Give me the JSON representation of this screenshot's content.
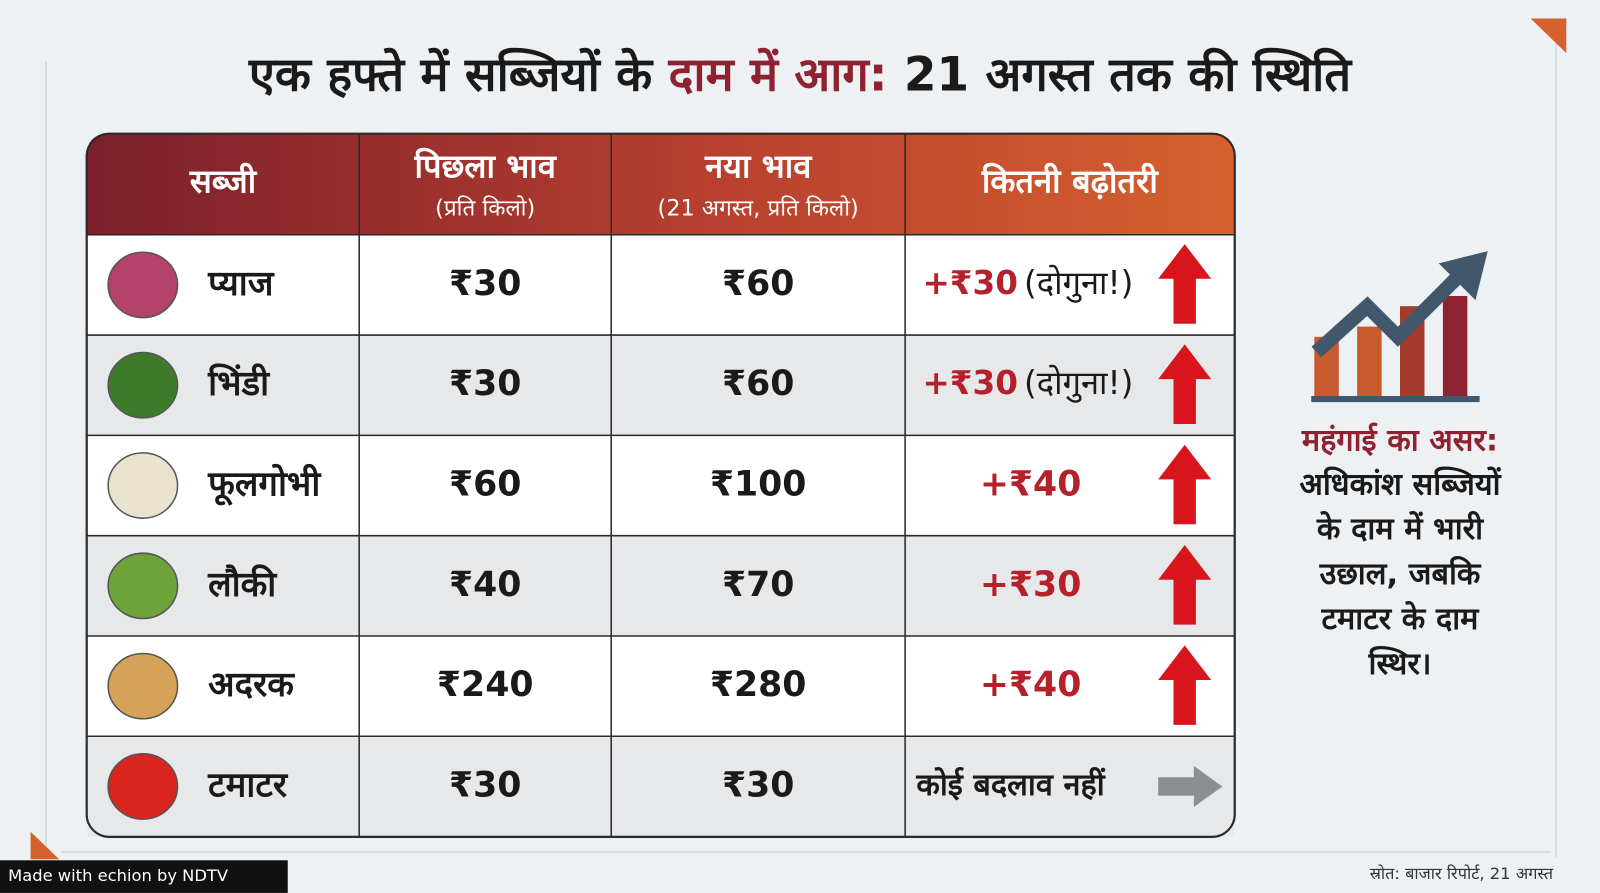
{
  "title": {
    "part1": "एक हफ्ते में सब्जियों के",
    "highlight": "दाम में आग:",
    "part2": "21 अगस्त तक की स्थिति"
  },
  "table": {
    "header": [
      {
        "label": "सब्जी"
      },
      {
        "label": "पिछला भाव",
        "sub": "(प्रति किलो)"
      },
      {
        "label": "नया भाव",
        "sub": "(21 अगस्त, प्रति किलो)"
      },
      {
        "label": "कितनी बढ़ोतरी"
      }
    ],
    "rows": [
      {
        "name": "प्याज",
        "previous": "₹30",
        "new": "₹60",
        "increase": "+₹30",
        "note": "(दोगुना!)"
      },
      {
        "name": "भिंडी",
        "previous": "₹30",
        "new": "₹60",
        "increase": "+₹30",
        "note": "(दोगुना!)"
      },
      {
        "name": "फूलगोभी",
        "previous": "₹60",
        "new": "₹100",
        "increase": "+₹40"
      },
      {
        "name": "लौकी",
        "previous": "₹40",
        "new": "₹70",
        "increase": "+₹30"
      },
      {
        "name": "अदरक",
        "previous": "₹240",
        "new": "₹280",
        "increase": "+₹40"
      },
      {
        "name": "टमाटर",
        "previous": "₹30",
        "new": "₹30",
        "increase": "कोई बदलाव नहीं"
      }
    ]
  },
  "side_note": {
    "heading": "महंगाई का असर:",
    "lines": [
      "अधिकांश सब्जियों",
      "के दाम में भारी",
      "उछाल, जबकि",
      "टमाटर के दाम",
      "स्थिर।"
    ]
  },
  "source": "स्रोत: बाजार रिपोर्ट, 21 अगस्त",
  "watermark": "Made with echion by NDTV"
}
